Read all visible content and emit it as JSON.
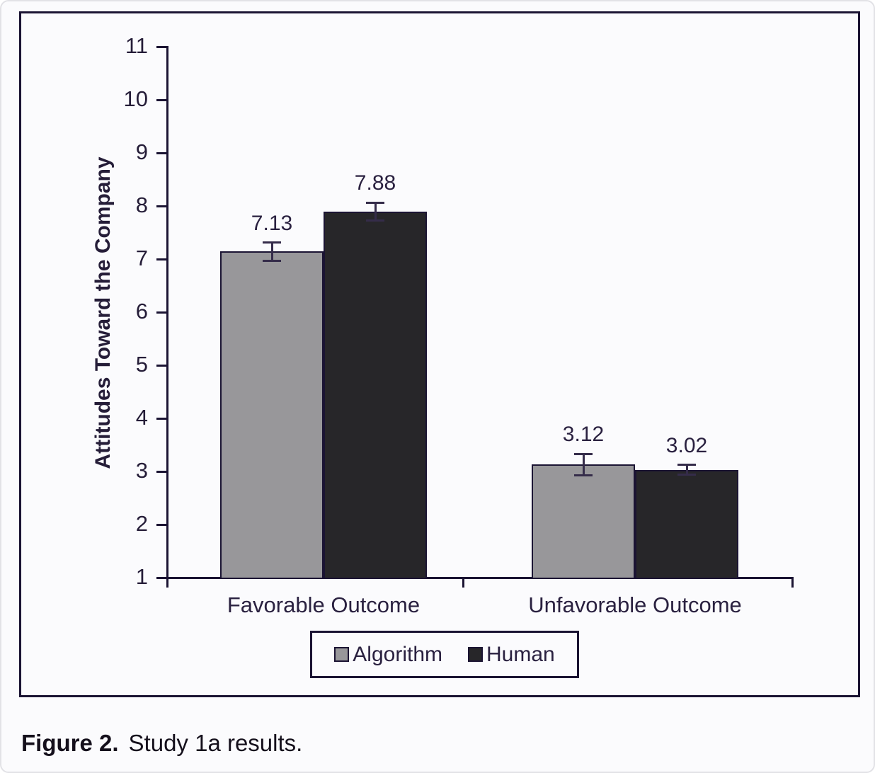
{
  "figure": {
    "caption_bold": "Figure 2.",
    "caption_text": "Study 1a results."
  },
  "chart_data": {
    "type": "bar",
    "title": "",
    "xlabel": "",
    "ylabel": "Attitudes Toward the Company",
    "categories": [
      "Favorable Outcome",
      "Unfavorable Outcome"
    ],
    "series": [
      {
        "name": "Algorithm",
        "color": "#98979a",
        "values": [
          7.13,
          3.12
        ],
        "errors": [
          0.17,
          0.2
        ]
      },
      {
        "name": "Human",
        "color": "#272629",
        "values": [
          7.88,
          3.02
        ],
        "errors": [
          0.17,
          0.09
        ]
      }
    ],
    "ylim": [
      1,
      11
    ],
    "ytick_step": 1,
    "yticks": [
      1,
      2,
      3,
      4,
      5,
      6,
      7,
      8,
      9,
      10,
      11
    ],
    "grid": false,
    "value_labels_shown": true,
    "error_bars_shown": true,
    "legend_position": "bottom",
    "axis_color": "#1b1433",
    "bar_edge_color": "#1b1433",
    "text_color": "#2a2140"
  }
}
